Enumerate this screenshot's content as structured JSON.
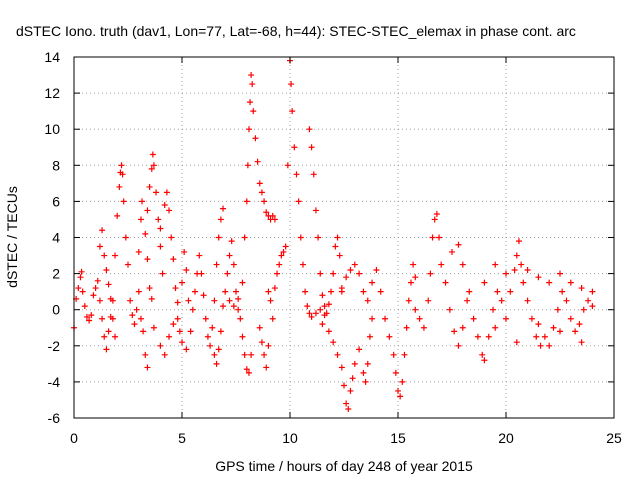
{
  "chart_data": {
    "type": "scatter",
    "title": "dSTEC Iono. truth (dav1, Lon=77, Lat=-68, h=44): STEC-STEC_elemax in phase cont. arc",
    "xlabel": "GPS time / hours of day 248 of year 2015",
    "ylabel": "dSTEC  / TECUs",
    "xlim": [
      0,
      25
    ],
    "ylim": [
      -6,
      14
    ],
    "xticks": [
      "0",
      "5",
      "10",
      "15",
      "20",
      "25"
    ],
    "yticks": [
      "-6",
      "-4",
      "-2",
      "0",
      "2",
      "4",
      "6",
      "8",
      "10",
      "12",
      "14"
    ],
    "grid": true,
    "marker": "plus",
    "color": "#ff0000",
    "series": [
      {
        "points": [
          [
            0.0,
            -1.0
          ],
          [
            0.1,
            0.6
          ],
          [
            0.2,
            1.2
          ],
          [
            0.3,
            1.8
          ],
          [
            0.35,
            2.1
          ],
          [
            0.4,
            1.0
          ],
          [
            0.5,
            0.2
          ],
          [
            0.6,
            -0.4
          ],
          [
            0.7,
            -0.6
          ],
          [
            0.8,
            -0.3
          ],
          [
            0.9,
            0.8
          ],
          [
            1.0,
            1.2
          ],
          [
            1.1,
            1.6
          ],
          [
            1.2,
            0.5
          ],
          [
            1.3,
            -0.5
          ],
          [
            1.4,
            -1.5
          ],
          [
            1.5,
            -2.2
          ],
          [
            1.6,
            -1.2
          ],
          [
            1.7,
            -0.4
          ],
          [
            1.8,
            0.5
          ],
          [
            1.2,
            3.5
          ],
          [
            1.3,
            4.4
          ],
          [
            1.4,
            3.0
          ],
          [
            1.5,
            2.2
          ],
          [
            1.6,
            1.4
          ],
          [
            1.7,
            0.6
          ],
          [
            1.8,
            -0.5
          ],
          [
            1.9,
            -1.5
          ],
          [
            1.9,
            3.0
          ],
          [
            2.0,
            5.2
          ],
          [
            2.1,
            6.8
          ],
          [
            2.15,
            7.6
          ],
          [
            2.2,
            8.0
          ],
          [
            2.25,
            7.5
          ],
          [
            2.3,
            6.0
          ],
          [
            2.4,
            4.0
          ],
          [
            2.5,
            2.5
          ],
          [
            2.6,
            0.5
          ],
          [
            2.7,
            -0.3
          ],
          [
            2.8,
            -0.8
          ],
          [
            2.9,
            0.0
          ],
          [
            3.0,
            1.0
          ],
          [
            3.1,
            -0.5
          ],
          [
            3.2,
            -1.2
          ],
          [
            3.3,
            -2.5
          ],
          [
            3.4,
            -3.2
          ],
          [
            3.0,
            3.2
          ],
          [
            3.1,
            5.0
          ],
          [
            3.15,
            6.0
          ],
          [
            3.3,
            4.2
          ],
          [
            3.4,
            2.8
          ],
          [
            3.5,
            1.2
          ],
          [
            3.6,
            0.6
          ],
          [
            3.7,
            -1.0
          ],
          [
            3.4,
            5.5
          ],
          [
            3.5,
            6.8
          ],
          [
            3.6,
            7.8
          ],
          [
            3.65,
            8.6
          ],
          [
            3.7,
            8.0
          ],
          [
            3.8,
            6.5
          ],
          [
            3.9,
            5.0
          ],
          [
            4.0,
            3.5
          ],
          [
            4.1,
            2.0
          ],
          [
            4.0,
            4.5
          ],
          [
            4.2,
            5.8
          ],
          [
            4.3,
            6.5
          ],
          [
            4.4,
            5.5
          ],
          [
            4.5,
            4.0
          ],
          [
            4.6,
            2.8
          ],
          [
            4.7,
            1.2
          ],
          [
            4.8,
            -0.5
          ],
          [
            4.9,
            -1.2
          ],
          [
            4.0,
            -2.0
          ],
          [
            4.2,
            -2.5
          ],
          [
            4.4,
            -1.5
          ],
          [
            4.6,
            -0.8
          ],
          [
            4.8,
            0.4
          ],
          [
            5.0,
            1.5
          ],
          [
            5.1,
            3.2
          ],
          [
            5.2,
            2.2
          ],
          [
            5.3,
            0.5
          ],
          [
            5.0,
            -1.8
          ],
          [
            5.2,
            -2.2
          ],
          [
            5.4,
            -1.2
          ],
          [
            5.5,
            0.0
          ],
          [
            5.6,
            1.0
          ],
          [
            5.7,
            2.0
          ],
          [
            5.8,
            3.0
          ],
          [
            5.9,
            2.0
          ],
          [
            6.0,
            0.8
          ],
          [
            6.1,
            -0.5
          ],
          [
            6.2,
            -1.5
          ],
          [
            6.3,
            -2.0
          ],
          [
            6.4,
            -1.0
          ],
          [
            6.5,
            0.5
          ],
          [
            6.6,
            2.5
          ],
          [
            6.7,
            4.0
          ],
          [
            6.8,
            5.0
          ],
          [
            6.9,
            5.6
          ],
          [
            6.5,
            -2.5
          ],
          [
            6.6,
            -3.0
          ],
          [
            6.7,
            -2.2
          ],
          [
            6.8,
            -1.2
          ],
          [
            6.9,
            0.2
          ],
          [
            7.0,
            1.0
          ],
          [
            7.1,
            2.0
          ],
          [
            7.2,
            3.0
          ],
          [
            7.3,
            3.8
          ],
          [
            7.4,
            2.5
          ],
          [
            7.5,
            1.0
          ],
          [
            7.6,
            0.0
          ],
          [
            7.7,
            -0.5
          ],
          [
            7.8,
            -1.5
          ],
          [
            7.9,
            -2.5
          ],
          [
            8.0,
            -3.3
          ],
          [
            8.1,
            -3.5
          ],
          [
            8.2,
            -2.5
          ],
          [
            7.2,
            0.5
          ],
          [
            7.4,
            0.2
          ],
          [
            7.6,
            0.6
          ],
          [
            7.8,
            1.5
          ],
          [
            7.9,
            4.0
          ],
          [
            8.0,
            6.0
          ],
          [
            8.05,
            8.0
          ],
          [
            8.1,
            10.0
          ],
          [
            8.15,
            11.5
          ],
          [
            8.2,
            13.0
          ],
          [
            8.25,
            12.5
          ],
          [
            8.3,
            11.0
          ],
          [
            8.4,
            9.5
          ],
          [
            8.5,
            8.2
          ],
          [
            8.6,
            7.0
          ],
          [
            8.7,
            6.5
          ],
          [
            8.8,
            6.0
          ],
          [
            8.9,
            5.4
          ],
          [
            9.0,
            5.2
          ],
          [
            9.1,
            5.0
          ],
          [
            9.2,
            5.2
          ],
          [
            9.3,
            5.0
          ],
          [
            8.6,
            -1.0
          ],
          [
            8.7,
            -1.8
          ],
          [
            8.8,
            -2.5
          ],
          [
            8.9,
            -3.2
          ],
          [
            9.0,
            -2.0
          ],
          [
            9.0,
            1.0
          ],
          [
            9.1,
            0.5
          ],
          [
            9.2,
            -0.5
          ],
          [
            9.3,
            1.2
          ],
          [
            9.4,
            2.0
          ],
          [
            9.5,
            2.5
          ],
          [
            9.6,
            3.0
          ],
          [
            9.7,
            3.2
          ],
          [
            9.8,
            3.5
          ],
          [
            9.9,
            8.0
          ],
          [
            10.0,
            13.8
          ],
          [
            10.05,
            12.5
          ],
          [
            10.1,
            11.0
          ],
          [
            10.2,
            9.0
          ],
          [
            10.3,
            7.5
          ],
          [
            10.4,
            6.0
          ],
          [
            10.5,
            4.0
          ],
          [
            10.6,
            2.5
          ],
          [
            10.7,
            1.0
          ],
          [
            10.8,
            0.2
          ],
          [
            10.9,
            -0.2
          ],
          [
            11.0,
            -0.4
          ],
          [
            11.2,
            -0.2
          ],
          [
            11.4,
            0.0
          ],
          [
            11.6,
            -0.3
          ],
          [
            10.9,
            10.0
          ],
          [
            11.0,
            9.0
          ],
          [
            11.1,
            7.5
          ],
          [
            11.2,
            5.5
          ],
          [
            11.3,
            4.0
          ],
          [
            11.4,
            2.0
          ],
          [
            11.5,
            0.8
          ],
          [
            11.6,
            0.2
          ],
          [
            11.7,
            -0.2
          ],
          [
            11.8,
            0.3
          ],
          [
            11.9,
            1.0
          ],
          [
            12.0,
            2.0
          ],
          [
            12.1,
            3.5
          ],
          [
            12.2,
            4.0
          ],
          [
            12.3,
            3.0
          ],
          [
            12.4,
            1.0
          ],
          [
            11.5,
            -0.8
          ],
          [
            11.8,
            -1.2
          ],
          [
            12.0,
            -1.8
          ],
          [
            12.2,
            -2.5
          ],
          [
            12.4,
            -3.2
          ],
          [
            12.5,
            -4.2
          ],
          [
            12.6,
            -5.2
          ],
          [
            12.7,
            -5.5
          ],
          [
            12.8,
            -4.5
          ],
          [
            12.9,
            -3.8
          ],
          [
            13.0,
            -3.0
          ],
          [
            13.2,
            -2.2
          ],
          [
            13.4,
            -3.5
          ],
          [
            13.5,
            -4.0
          ],
          [
            13.6,
            -3.0
          ],
          [
            13.7,
            -1.5
          ],
          [
            12.4,
            1.2
          ],
          [
            12.6,
            1.8
          ],
          [
            12.8,
            2.2
          ],
          [
            13.0,
            2.5
          ],
          [
            13.2,
            2.0
          ],
          [
            13.4,
            1.0
          ],
          [
            13.6,
            0.5
          ],
          [
            13.8,
            -0.5
          ],
          [
            13.8,
            1.5
          ],
          [
            14.0,
            2.2
          ],
          [
            14.2,
            1.0
          ],
          [
            14.4,
            -0.5
          ],
          [
            14.6,
            -1.5
          ],
          [
            14.8,
            -2.5
          ],
          [
            14.9,
            -3.5
          ],
          [
            15.0,
            -4.5
          ],
          [
            15.1,
            -4.8
          ],
          [
            15.2,
            -4.0
          ],
          [
            15.3,
            -2.5
          ],
          [
            15.4,
            -1.0
          ],
          [
            15.5,
            0.5
          ],
          [
            15.6,
            1.5
          ],
          [
            15.7,
            2.5
          ],
          [
            15.8,
            1.8
          ],
          [
            15.8,
            0.0
          ],
          [
            16.0,
            -0.5
          ],
          [
            16.2,
            -1.0
          ],
          [
            16.4,
            0.5
          ],
          [
            16.5,
            2.0
          ],
          [
            16.6,
            4.0
          ],
          [
            16.7,
            5.0
          ],
          [
            16.8,
            5.3
          ],
          [
            16.9,
            4.0
          ],
          [
            17.0,
            2.5
          ],
          [
            17.2,
            1.5
          ],
          [
            17.4,
            0.0
          ],
          [
            17.6,
            -1.2
          ],
          [
            17.8,
            -2.0
          ],
          [
            18.0,
            -1.0
          ],
          [
            18.2,
            0.5
          ],
          [
            17.5,
            3.2
          ],
          [
            17.8,
            3.6
          ],
          [
            18.0,
            2.5
          ],
          [
            18.3,
            1.0
          ],
          [
            18.5,
            -0.5
          ],
          [
            18.7,
            -1.5
          ],
          [
            18.9,
            -2.5
          ],
          [
            19.0,
            -2.8
          ],
          [
            19.2,
            -1.5
          ],
          [
            19.4,
            0.0
          ],
          [
            19.6,
            1.0
          ],
          [
            19.8,
            0.5
          ],
          [
            20.0,
            -0.5
          ],
          [
            20.2,
            1.0
          ],
          [
            20.4,
            2.2
          ],
          [
            20.5,
            3.0
          ],
          [
            20.6,
            3.8
          ],
          [
            20.7,
            2.5
          ],
          [
            20.8,
            1.5
          ],
          [
            21.0,
            0.5
          ],
          [
            21.2,
            -0.5
          ],
          [
            21.4,
            -1.5
          ],
          [
            21.6,
            -2.0
          ],
          [
            21.8,
            -1.5
          ],
          [
            22.0,
            -2.0
          ],
          [
            22.2,
            -1.0
          ],
          [
            22.4,
            0.0
          ],
          [
            22.6,
            1.0
          ],
          [
            22.8,
            0.5
          ],
          [
            23.0,
            -0.5
          ],
          [
            23.2,
            -1.2
          ],
          [
            23.4,
            -0.8
          ],
          [
            23.6,
            0.0
          ],
          [
            23.8,
            0.5
          ],
          [
            24.0,
            0.2
          ],
          [
            19.0,
            1.5
          ],
          [
            19.5,
            2.5
          ],
          [
            20.0,
            2.0
          ],
          [
            21.0,
            2.2
          ],
          [
            21.5,
            1.8
          ],
          [
            22.0,
            1.5
          ],
          [
            22.5,
            2.0
          ],
          [
            23.0,
            1.5
          ],
          [
            23.5,
            1.2
          ],
          [
            24.0,
            1.0
          ],
          [
            19.5,
            -1.0
          ],
          [
            20.5,
            -1.8
          ],
          [
            21.5,
            -0.8
          ],
          [
            22.5,
            -1.2
          ],
          [
            23.5,
            -1.8
          ]
        ]
      }
    ]
  }
}
